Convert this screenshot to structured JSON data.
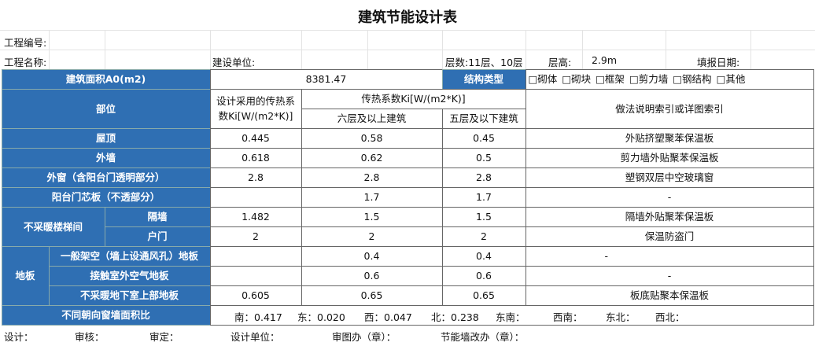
{
  "title": "建筑节能设计表",
  "info": {
    "project_no_label": "工程编号:",
    "project_name_label": "工程名称:",
    "builder_label": "建设单位:",
    "floors": "层数:11层、10层",
    "height_label": "层高:",
    "height": "2.9m",
    "date_label": "填报日期:"
  },
  "area": {
    "label": "建筑面积A0(m2)",
    "value": 8381.47
  },
  "structure": {
    "label": "结构类型",
    "options": [
      "□砌体",
      "□砌块",
      "□框架",
      "□剪力墙",
      "□钢结构",
      "□其他"
    ]
  },
  "header": {
    "part": "部位",
    "design_k": "设计采用的传热系数Ki[W/(m2*K)]",
    "limit_k": "传热系数Ki[W/(m2*K)]",
    "above6": "六层及以上建筑",
    "below5": "五层及以下建筑",
    "method": "做法说明索引或详图索引"
  },
  "groups": [
    "不采暖楼梯间",
    "地板"
  ],
  "rows": [
    {
      "name": "屋顶",
      "design": 0.445,
      "above6": 0.58,
      "below5": 0.45,
      "method": "外贴挤塑聚苯保温板"
    },
    {
      "name": "外墙",
      "design": 0.618,
      "above6": 0.62,
      "below5": 0.5,
      "method": "剪力墙外贴聚苯保温板"
    },
    {
      "name": "外窗（含阳台门透明部分）",
      "design": 2.8,
      "above6": 2.8,
      "below5": 2.8,
      "method": "塑钢双层中空玻璃窗"
    },
    {
      "name": "阳台门芯板（不透部分）",
      "design": null,
      "above6": 1.7,
      "below5": 1.7,
      "method": "-"
    },
    {
      "name": "隔墙",
      "design": 1.482,
      "above6": 1.5,
      "below5": 1.5,
      "method": "隔墙外贴聚苯保温板"
    },
    {
      "name": "户门",
      "design": 2,
      "above6": 2,
      "below5": 2,
      "method": "保温防盗门"
    },
    {
      "name": "一般架空（墙上设通风孔）地板",
      "design": null,
      "above6": 0.4,
      "below5": 0.4,
      "method": "-"
    },
    {
      "name": "接触室外空气地板",
      "design": null,
      "above6": 0.6,
      "below5": 0.6,
      "method": "-"
    },
    {
      "name": "不采暖地下室上部地板",
      "design": 0.605,
      "above6": 0.65,
      "below5": 0.65,
      "method": "板底贴聚本保温板"
    }
  ],
  "orientation": {
    "label": "不同朝向窗墙面积比",
    "items": [
      {
        "dir": "南：",
        "value": 0.417
      },
      {
        "dir": "东：",
        "value": "0.020"
      },
      {
        "dir": "西：",
        "value": 0.047
      },
      {
        "dir": "北：",
        "value": 0.238
      },
      {
        "dir": "东南：",
        "value": null
      },
      {
        "dir": "西南：",
        "value": null
      },
      {
        "dir": "东北：",
        "value": null
      },
      {
        "dir": "西北：",
        "value": null
      }
    ]
  },
  "footer": [
    "设计：",
    "审核：",
    "审定：",
    "设计单位：",
    "审图办（章）：",
    "节能墙改办（章）："
  ]
}
